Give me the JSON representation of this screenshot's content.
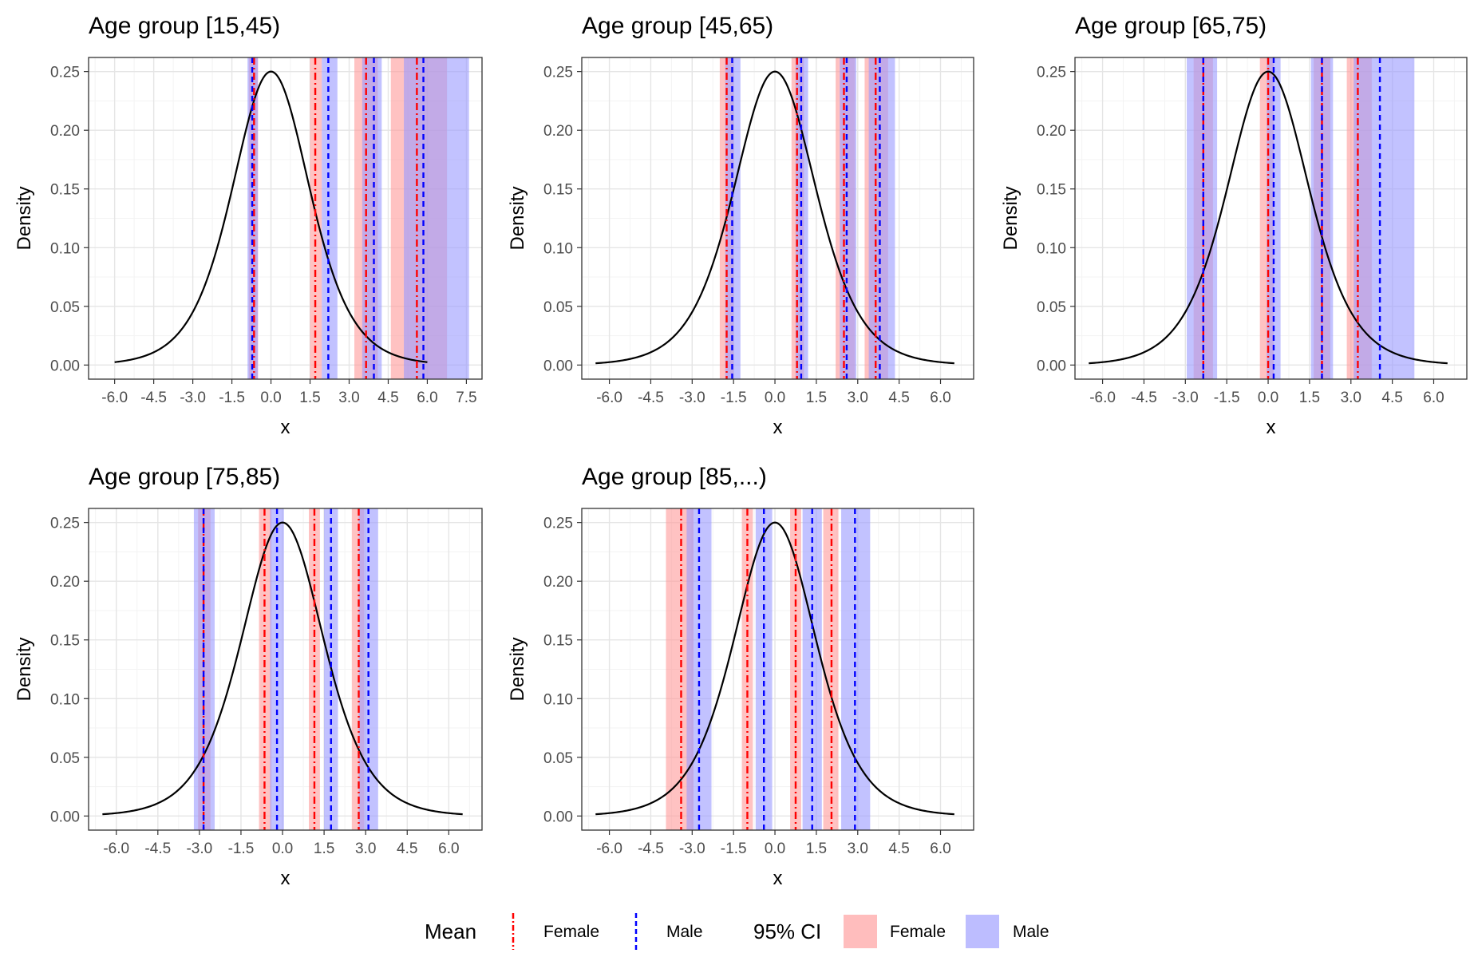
{
  "chart_data": [
    {
      "type": "line",
      "title": "Age group [15,45)",
      "xlabel": "x",
      "ylabel": "Density",
      "xlim": [
        -7.0,
        8.1
      ],
      "ylim": [
        -0.012,
        0.262
      ],
      "xticks": [
        "-6.0",
        "-4.5",
        "-3.0",
        "-1.5",
        "0.0",
        "1.5",
        "3.0",
        "4.5",
        "6.0",
        "7.5"
      ],
      "yticks": [
        "0.00",
        "0.05",
        "0.10",
        "0.15",
        "0.20",
        "0.25"
      ],
      "curve": {
        "distribution": "logistic",
        "x_range": [
          -6.0,
          6.0
        ],
        "peak": 0.25
      },
      "female_means": [
        -0.65,
        1.7,
        3.65,
        5.6
      ],
      "male_means": [
        -0.72,
        2.2,
        3.95,
        5.85
      ],
      "female_ci": [
        [
          -0.85,
          -0.5
        ],
        [
          1.5,
          1.95
        ],
        [
          3.2,
          4.1
        ],
        [
          4.6,
          6.75
        ]
      ],
      "male_ci": [
        [
          -0.9,
          -0.5
        ],
        [
          1.95,
          2.55
        ],
        [
          3.5,
          4.25
        ],
        [
          5.1,
          7.6
        ]
      ]
    },
    {
      "type": "line",
      "title": "Age group [45,65)",
      "xlabel": "x",
      "ylabel": "Density",
      "xlim": [
        -7.0,
        7.2
      ],
      "ylim": [
        -0.012,
        0.262
      ],
      "xticks": [
        "-6.0",
        "-4.5",
        "-3.0",
        "-1.5",
        "0.0",
        "1.5",
        "3.0",
        "4.5",
        "6.0"
      ],
      "yticks": [
        "0.00",
        "0.05",
        "0.10",
        "0.15",
        "0.20",
        "0.25"
      ],
      "curve": {
        "distribution": "logistic",
        "x_range": [
          -6.5,
          6.5
        ],
        "peak": 0.25
      },
      "female_means": [
        -1.75,
        0.8,
        2.5,
        3.65
      ],
      "male_means": [
        -1.55,
        0.95,
        2.6,
        3.8
      ],
      "female_ci": [
        [
          -2.0,
          -1.5
        ],
        [
          0.6,
          1.05
        ],
        [
          2.2,
          2.9
        ],
        [
          3.25,
          4.1
        ]
      ],
      "male_ci": [
        [
          -1.8,
          -1.25
        ],
        [
          0.75,
          1.2
        ],
        [
          2.35,
          2.95
        ],
        [
          3.4,
          4.35
        ]
      ]
    },
    {
      "type": "line",
      "title": "Age group [65,75)",
      "xlabel": "x",
      "ylabel": "Density",
      "xlim": [
        -7.0,
        7.2
      ],
      "ylim": [
        -0.012,
        0.262
      ],
      "xticks": [
        "-6.0",
        "-4.5",
        "-3.0",
        "-1.5",
        "0.0",
        "1.5",
        "3.0",
        "4.5",
        "6.0"
      ],
      "yticks": [
        "0.00",
        "0.05",
        "0.10",
        "0.15",
        "0.20",
        "0.25"
      ],
      "curve": {
        "distribution": "logistic",
        "x_range": [
          -6.5,
          6.5
        ],
        "peak": 0.25
      },
      "female_means": [
        -2.35,
        0.0,
        1.95,
        3.25
      ],
      "male_means": [
        -2.35,
        0.2,
        1.95,
        4.05
      ],
      "female_ci": [
        [
          -2.7,
          -2.0
        ],
        [
          -0.3,
          0.2
        ],
        [
          1.65,
          2.25
        ],
        [
          2.85,
          3.75
        ]
      ],
      "male_ci": [
        [
          -2.95,
          -1.85
        ],
        [
          -0.05,
          0.45
        ],
        [
          1.55,
          2.35
        ],
        [
          3.1,
          5.3
        ]
      ]
    },
    {
      "type": "line",
      "title": "Age group [75,85)",
      "xlabel": "x",
      "ylabel": "Density",
      "xlim": [
        -7.0,
        7.2
      ],
      "ylim": [
        -0.012,
        0.262
      ],
      "xticks": [
        "-6.0",
        "-4.5",
        "-3.0",
        "-1.5",
        "0.0",
        "1.5",
        "3.0",
        "4.5",
        "6.0"
      ],
      "yticks": [
        "0.00",
        "0.05",
        "0.10",
        "0.15",
        "0.20",
        "0.25"
      ],
      "curve": {
        "distribution": "logistic",
        "x_range": [
          -6.5,
          6.5
        ],
        "peak": 0.25
      },
      "female_means": [
        -2.85,
        -0.65,
        1.15,
        2.75
      ],
      "male_means": [
        -2.85,
        -0.2,
        1.75,
        3.1
      ],
      "female_ci": [
        [
          -3.05,
          -2.6
        ],
        [
          -0.85,
          -0.4
        ],
        [
          0.95,
          1.35
        ],
        [
          2.5,
          2.95
        ]
      ],
      "male_ci": [
        [
          -3.2,
          -2.45
        ],
        [
          -0.45,
          0.05
        ],
        [
          1.5,
          2.0
        ],
        [
          2.75,
          3.45
        ]
      ]
    },
    {
      "type": "line",
      "title": "Age group [85,...)",
      "xlabel": "x",
      "ylabel": "Density",
      "xlim": [
        -7.0,
        7.2
      ],
      "ylim": [
        -0.012,
        0.262
      ],
      "xticks": [
        "-6.0",
        "-4.5",
        "-3.0",
        "-1.5",
        "0.0",
        "1.5",
        "3.0",
        "4.5",
        "6.0"
      ],
      "yticks": [
        "0.00",
        "0.05",
        "0.10",
        "0.15",
        "0.20",
        "0.25"
      ],
      "curve": {
        "distribution": "logistic",
        "x_range": [
          -6.5,
          6.5
        ],
        "peak": 0.25
      },
      "female_means": [
        -3.4,
        -1.0,
        0.75,
        2.05
      ],
      "male_means": [
        -2.75,
        -0.4,
        1.35,
        2.9
      ],
      "female_ci": [
        [
          -3.95,
          -2.95
        ],
        [
          -1.2,
          -0.8
        ],
        [
          0.55,
          0.95
        ],
        [
          1.75,
          2.3
        ]
      ],
      "male_ci": [
        [
          -3.2,
          -2.3
        ],
        [
          -0.7,
          -0.1
        ],
        [
          1.0,
          1.7
        ],
        [
          2.4,
          3.45
        ]
      ]
    }
  ],
  "legend": {
    "mean_title": "Mean",
    "ci_title": "95% CI",
    "female_label": "Female",
    "male_label": "Male"
  },
  "colors": {
    "female": "#ff0000",
    "male": "#0000ff",
    "female_fill": "#ff9999",
    "male_fill": "#9999ff",
    "curve": "#000000",
    "grid_major": "#e5e5e5",
    "grid_minor": "#f3f3f3",
    "panel_border": "#333333",
    "tick_text": "#4d4d4d"
  }
}
